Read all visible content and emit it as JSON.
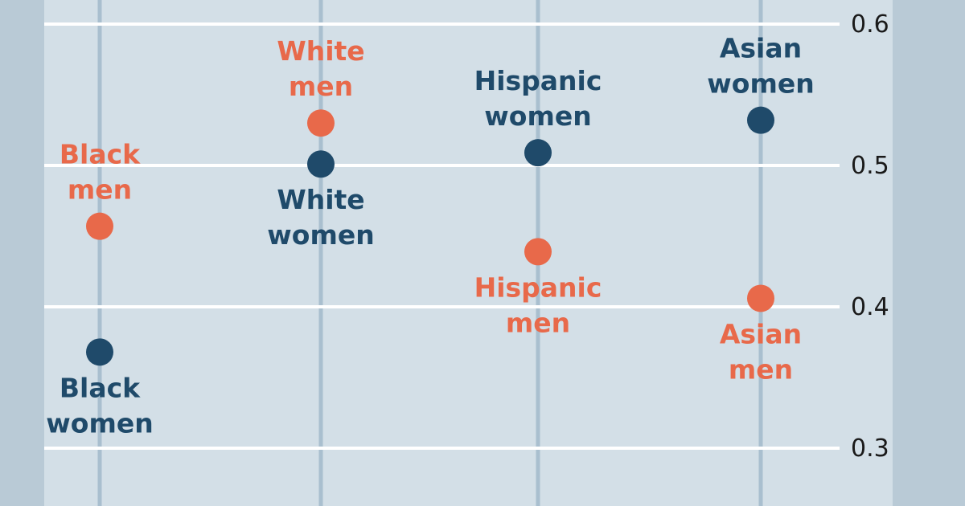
{
  "chart_data": {
    "type": "scatter",
    "title": "",
    "xlabel": "",
    "ylabel": "",
    "categories": [
      "Black",
      "White",
      "Hispanic",
      "Asian"
    ],
    "ylim": [
      0.3,
      0.6
    ],
    "yticks": [
      0.3,
      0.4,
      0.5,
      0.6
    ],
    "grid": true,
    "series": [
      {
        "name": "men",
        "color": "#e8694a",
        "values": [
          0.457,
          0.53,
          0.439,
          0.406
        ],
        "labels": [
          [
            "Black",
            "men"
          ],
          [
            "White",
            "men"
          ],
          [
            "Hispanic",
            "men"
          ],
          [
            "Asian",
            "men"
          ]
        ],
        "label_side": [
          "above",
          "above",
          "below",
          "below"
        ]
      },
      {
        "name": "women",
        "color": "#1f4a6a",
        "values": [
          0.368,
          0.501,
          0.509,
          0.532
        ],
        "labels": [
          [
            "Black",
            "women"
          ],
          [
            "White",
            "women"
          ],
          [
            "Hispanic",
            "women"
          ],
          [
            "Asian",
            "women"
          ]
        ],
        "label_side": [
          "below",
          "below",
          "above",
          "above"
        ]
      }
    ]
  },
  "colors": {
    "background": "#b9cad6",
    "plot_area": "#d3dfe7",
    "gridline": "#ffffff",
    "category_line": "#a9bfcf",
    "tick_text": "#1a1a1a"
  }
}
